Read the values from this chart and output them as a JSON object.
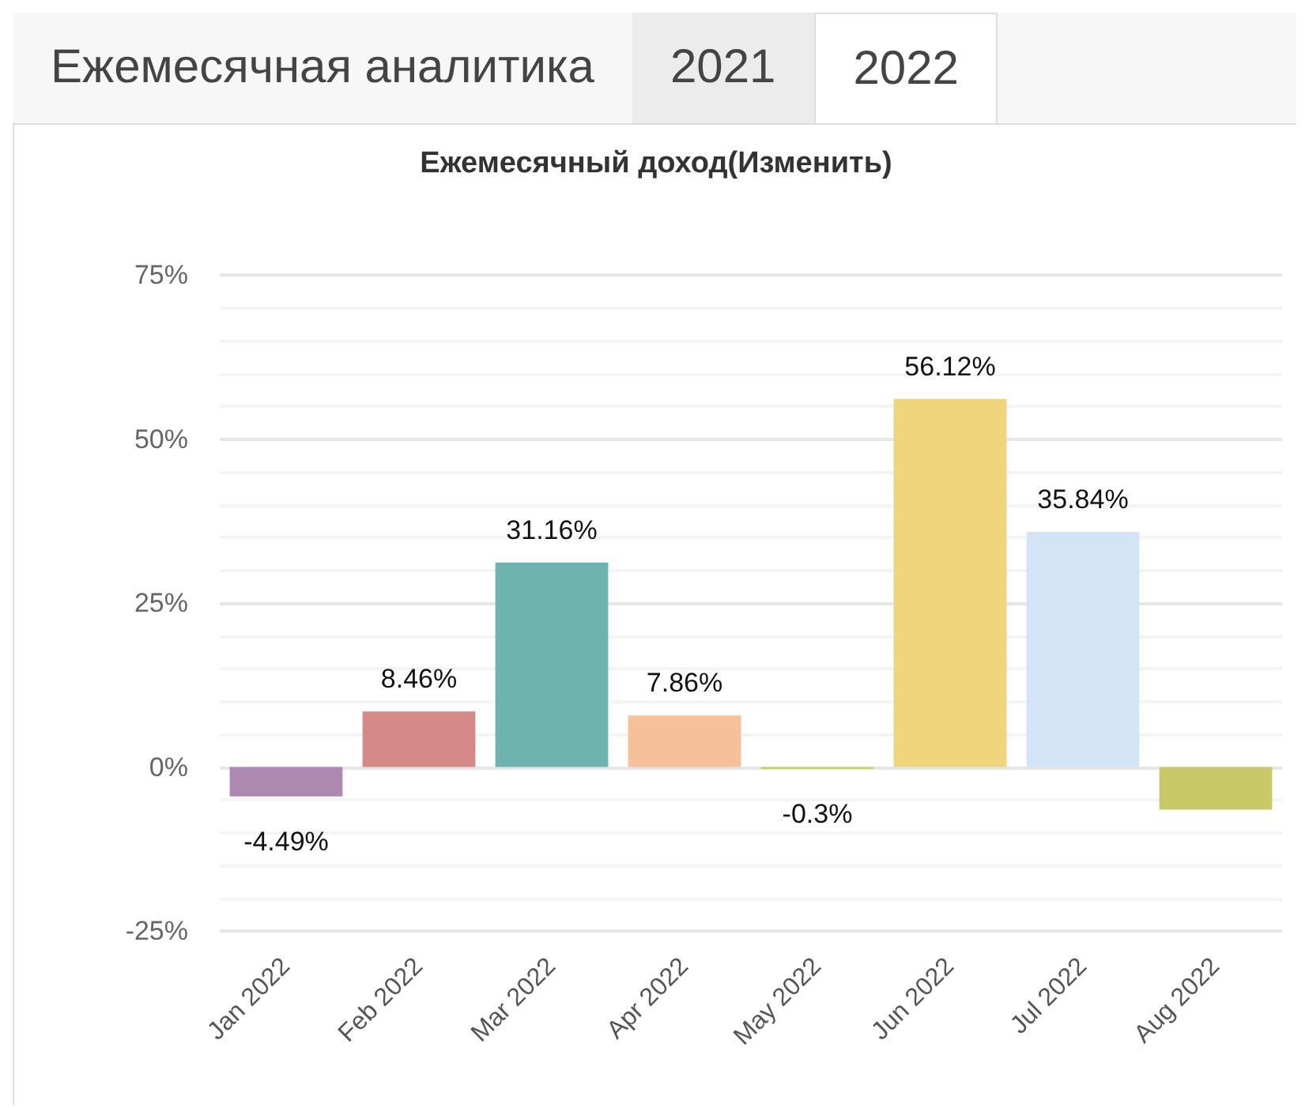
{
  "chart_data": {
    "type": "bar",
    "title": "Ежемесячный доход(Изменить)",
    "annotations": [
      "Ежемесячная аналитика",
      "2021",
      "2022"
    ],
    "categories": [
      "Jan 2022",
      "Feb 2022",
      "Mar 2022",
      "Apr 2022",
      "May 2022",
      "Jun 2022",
      "Jul 2022",
      "Aug 2022"
    ],
    "values": [
      -4.49,
      8.46,
      31.16,
      7.86,
      -0.3,
      56.12,
      35.84,
      -6.5
    ],
    "colors": [
      "#ad89b1",
      "#d58a88",
      "#6fb3b1",
      "#f5c09a",
      "#c6d36a",
      "#efd57c",
      "#d2e4f6",
      "#c9c96a"
    ],
    "value_labels": [
      "-4.49%",
      "8.46%",
      "31.16%",
      "7.86%",
      "-0.3%",
      "56.12%",
      "35.84%",
      null
    ],
    "ylim": [
      -25,
      75
    ],
    "yticks": [
      {
        "value": -25,
        "label": "-25%"
      },
      {
        "value": 0,
        "label": "0%"
      },
      {
        "value": 25,
        "label": "25%"
      },
      {
        "value": 50,
        "label": "50%"
      },
      {
        "value": 75,
        "label": "75%"
      }
    ],
    "grid": true
  }
}
